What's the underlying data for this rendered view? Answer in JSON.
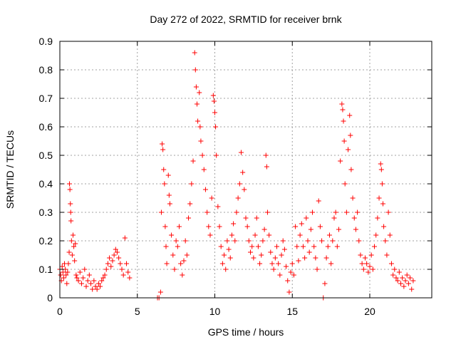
{
  "chart_data": {
    "type": "scatter",
    "title": "Day 272 of 2022, SRMTID for receiver brnk",
    "xlabel": "GPS time / hours",
    "ylabel": "SRMTID / TECUs",
    "xlim": [
      0,
      24
    ],
    "ylim": [
      0,
      0.9
    ],
    "xticks": [
      "0",
      "5",
      "10",
      "15",
      "20"
    ],
    "xtick_values": [
      0,
      5,
      10,
      15,
      20
    ],
    "yticks": [
      "0",
      "0.1",
      "0.2",
      "0.3",
      "0.4",
      "0.5",
      "0.6",
      "0.7",
      "0.8",
      "0.9"
    ],
    "ytick_values": [
      0,
      0.1,
      0.2,
      0.3,
      0.4,
      0.5,
      0.6,
      0.7,
      0.8,
      0.9
    ],
    "grid": true,
    "marker": "+",
    "color": "#ff0000",
    "series": [
      {
        "name": "SRMTID",
        "points": [
          [
            0.0,
            0.1
          ],
          [
            0.05,
            0.08
          ],
          [
            0.1,
            0.06
          ],
          [
            0.15,
            0.11
          ],
          [
            0.2,
            0.09
          ],
          [
            0.25,
            0.07
          ],
          [
            0.3,
            0.12
          ],
          [
            0.35,
            0.1
          ],
          [
            0.4,
            0.08
          ],
          [
            0.45,
            0.05
          ],
          [
            0.5,
            0.09
          ],
          [
            0.55,
            0.12
          ],
          [
            0.6,
            0.16
          ],
          [
            0.62,
            0.4
          ],
          [
            0.65,
            0.38
          ],
          [
            0.68,
            0.33
          ],
          [
            0.7,
            0.3
          ],
          [
            0.72,
            0.27
          ],
          [
            0.75,
            0.2
          ],
          [
            0.8,
            0.15
          ],
          [
            0.85,
            0.22
          ],
          [
            0.9,
            0.18
          ],
          [
            0.95,
            0.13
          ],
          [
            1.0,
            0.19
          ],
          [
            1.05,
            0.08
          ],
          [
            1.1,
            0.07
          ],
          [
            1.2,
            0.06
          ],
          [
            1.3,
            0.09
          ],
          [
            1.4,
            0.05
          ],
          [
            1.5,
            0.07
          ],
          [
            1.6,
            0.1
          ],
          [
            1.7,
            0.04
          ],
          [
            1.8,
            0.06
          ],
          [
            1.9,
            0.08
          ],
          [
            2.0,
            0.05
          ],
          [
            2.1,
            0.03
          ],
          [
            2.2,
            0.06
          ],
          [
            2.3,
            0.04
          ],
          [
            2.4,
            0.03
          ],
          [
            2.5,
            0.05
          ],
          [
            2.6,
            0.04
          ],
          [
            2.7,
            0.06
          ],
          [
            2.8,
            0.07
          ],
          [
            2.9,
            0.08
          ],
          [
            3.0,
            0.1
          ],
          [
            3.1,
            0.12
          ],
          [
            3.2,
            0.14
          ],
          [
            3.3,
            0.11
          ],
          [
            3.4,
            0.13
          ],
          [
            3.5,
            0.15
          ],
          [
            3.6,
            0.17
          ],
          [
            3.7,
            0.16
          ],
          [
            3.8,
            0.14
          ],
          [
            3.9,
            0.12
          ],
          [
            4.0,
            0.1
          ],
          [
            4.1,
            0.08
          ],
          [
            4.2,
            0.21
          ],
          [
            4.3,
            0.12
          ],
          [
            4.4,
            0.09
          ],
          [
            4.5,
            0.07
          ],
          [
            6.3,
            0.0
          ],
          [
            6.4,
            0.0
          ],
          [
            6.5,
            0.02
          ],
          [
            6.55,
            0.3
          ],
          [
            6.6,
            0.54
          ],
          [
            6.65,
            0.52
          ],
          [
            6.7,
            0.45
          ],
          [
            6.75,
            0.4
          ],
          [
            6.8,
            0.25
          ],
          [
            6.85,
            0.18
          ],
          [
            6.9,
            0.12
          ],
          [
            7.0,
            0.43
          ],
          [
            7.05,
            0.36
          ],
          [
            7.1,
            0.33
          ],
          [
            7.2,
            0.22
          ],
          [
            7.3,
            0.15
          ],
          [
            7.4,
            0.1
          ],
          [
            7.5,
            0.2
          ],
          [
            7.6,
            0.18
          ],
          [
            7.7,
            0.25
          ],
          [
            7.8,
            0.12
          ],
          [
            7.9,
            0.08
          ],
          [
            8.0,
            0.13
          ],
          [
            8.1,
            0.2
          ],
          [
            8.2,
            0.15
          ],
          [
            8.3,
            0.28
          ],
          [
            8.4,
            0.33
          ],
          [
            8.5,
            0.4
          ],
          [
            8.6,
            0.48
          ],
          [
            8.7,
            0.86
          ],
          [
            8.75,
            0.8
          ],
          [
            8.8,
            0.74
          ],
          [
            8.85,
            0.68
          ],
          [
            8.9,
            0.62
          ],
          [
            9.0,
            0.72
          ],
          [
            9.05,
            0.6
          ],
          [
            9.1,
            0.55
          ],
          [
            9.2,
            0.5
          ],
          [
            9.3,
            0.45
          ],
          [
            9.4,
            0.38
          ],
          [
            9.5,
            0.3
          ],
          [
            9.6,
            0.25
          ],
          [
            9.7,
            0.22
          ],
          [
            9.8,
            0.35
          ],
          [
            9.9,
            0.71
          ],
          [
            9.95,
            0.69
          ],
          [
            10.0,
            0.65
          ],
          [
            10.05,
            0.6
          ],
          [
            10.1,
            0.5
          ],
          [
            10.2,
            0.32
          ],
          [
            10.3,
            0.25
          ],
          [
            10.4,
            0.18
          ],
          [
            10.5,
            0.12
          ],
          [
            10.6,
            0.15
          ],
          [
            10.7,
            0.1
          ],
          [
            10.8,
            0.2
          ],
          [
            10.9,
            0.17
          ],
          [
            11.0,
            0.14
          ],
          [
            11.1,
            0.22
          ],
          [
            11.2,
            0.26
          ],
          [
            11.3,
            0.2
          ],
          [
            11.4,
            0.3
          ],
          [
            11.5,
            0.35
          ],
          [
            11.6,
            0.4
          ],
          [
            11.7,
            0.51
          ],
          [
            11.8,
            0.44
          ],
          [
            11.9,
            0.38
          ],
          [
            12.0,
            0.28
          ],
          [
            12.1,
            0.25
          ],
          [
            12.2,
            0.2
          ],
          [
            12.3,
            0.16
          ],
          [
            12.4,
            0.18
          ],
          [
            12.5,
            0.14
          ],
          [
            12.6,
            0.22
          ],
          [
            12.7,
            0.28
          ],
          [
            12.8,
            0.18
          ],
          [
            12.9,
            0.12
          ],
          [
            13.0,
            0.15
          ],
          [
            13.1,
            0.2
          ],
          [
            13.2,
            0.24
          ],
          [
            13.3,
            0.5
          ],
          [
            13.35,
            0.46
          ],
          [
            13.4,
            0.3
          ],
          [
            13.5,
            0.22
          ],
          [
            13.6,
            0.16
          ],
          [
            13.7,
            0.12
          ],
          [
            13.8,
            0.1
          ],
          [
            13.9,
            0.14
          ],
          [
            14.0,
            0.18
          ],
          [
            14.1,
            0.12
          ],
          [
            14.2,
            0.08
          ],
          [
            14.3,
            0.15
          ],
          [
            14.4,
            0.2
          ],
          [
            14.5,
            0.17
          ],
          [
            14.6,
            0.11
          ],
          [
            14.7,
            0.06
          ],
          [
            14.8,
            0.02
          ],
          [
            14.9,
            0.09
          ],
          [
            15.0,
            0.12
          ],
          [
            15.1,
            0.08
          ],
          [
            15.2,
            0.25
          ],
          [
            15.3,
            0.18
          ],
          [
            15.4,
            0.13
          ],
          [
            15.5,
            0.22
          ],
          [
            15.6,
            0.26
          ],
          [
            15.7,
            0.18
          ],
          [
            15.8,
            0.14
          ],
          [
            15.9,
            0.28
          ],
          [
            16.0,
            0.2
          ],
          [
            16.1,
            0.16
          ],
          [
            16.2,
            0.24
          ],
          [
            16.3,
            0.3
          ],
          [
            16.4,
            0.18
          ],
          [
            16.5,
            0.14
          ],
          [
            16.6,
            0.1
          ],
          [
            16.7,
            0.34
          ],
          [
            16.8,
            0.25
          ],
          [
            16.9,
            0.2
          ],
          [
            17.0,
            0.0
          ],
          [
            17.1,
            0.05
          ],
          [
            17.2,
            0.14
          ],
          [
            17.3,
            0.18
          ],
          [
            17.4,
            0.22
          ],
          [
            17.5,
            0.12
          ],
          [
            17.6,
            0.2
          ],
          [
            17.7,
            0.28
          ],
          [
            17.8,
            0.3
          ],
          [
            17.9,
            0.18
          ],
          [
            18.0,
            0.24
          ],
          [
            18.1,
            0.48
          ],
          [
            18.2,
            0.68
          ],
          [
            18.25,
            0.66
          ],
          [
            18.3,
            0.62
          ],
          [
            18.35,
            0.55
          ],
          [
            18.4,
            0.4
          ],
          [
            18.5,
            0.3
          ],
          [
            18.6,
            0.52
          ],
          [
            18.7,
            0.64
          ],
          [
            18.75,
            0.57
          ],
          [
            18.8,
            0.45
          ],
          [
            18.9,
            0.35
          ],
          [
            19.0,
            0.28
          ],
          [
            19.1,
            0.24
          ],
          [
            19.2,
            0.3
          ],
          [
            19.3,
            0.2
          ],
          [
            19.4,
            0.15
          ],
          [
            19.5,
            0.12
          ],
          [
            19.6,
            0.1
          ],
          [
            19.7,
            0.14
          ],
          [
            19.8,
            0.12
          ],
          [
            19.9,
            0.09
          ],
          [
            20.0,
            0.11
          ],
          [
            20.1,
            0.15
          ],
          [
            20.2,
            0.1
          ],
          [
            20.3,
            0.18
          ],
          [
            20.4,
            0.22
          ],
          [
            20.5,
            0.28
          ],
          [
            20.6,
            0.35
          ],
          [
            20.7,
            0.47
          ],
          [
            20.75,
            0.45
          ],
          [
            20.8,
            0.4
          ],
          [
            20.85,
            0.33
          ],
          [
            20.9,
            0.25
          ],
          [
            21.0,
            0.2
          ],
          [
            21.1,
            0.15
          ],
          [
            21.2,
            0.3
          ],
          [
            21.3,
            0.22
          ],
          [
            21.4,
            0.12
          ],
          [
            21.5,
            0.08
          ],
          [
            21.6,
            0.1
          ],
          [
            21.7,
            0.07
          ],
          [
            21.8,
            0.06
          ],
          [
            21.9,
            0.09
          ],
          [
            22.0,
            0.05
          ],
          [
            22.1,
            0.07
          ],
          [
            22.2,
            0.04
          ],
          [
            22.3,
            0.06
          ],
          [
            22.4,
            0.08
          ],
          [
            22.5,
            0.05
          ],
          [
            22.6,
            0.07
          ],
          [
            22.7,
            0.03
          ],
          [
            22.8,
            0.06
          ]
        ]
      }
    ]
  }
}
